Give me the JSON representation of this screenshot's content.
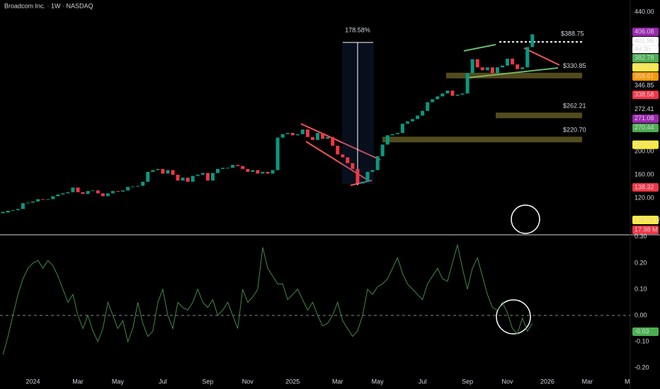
{
  "chart_data": [
    {
      "type": "candlestick",
      "title": "Broadcom Inc. · 1W · NASDAQ",
      "values": [
        95,
        98,
        99,
        101,
        111,
        112,
        114,
        118,
        117,
        118,
        123,
        126,
        128,
        130,
        138,
        130,
        127,
        132,
        133,
        128,
        123,
        128,
        132,
        131,
        133,
        139,
        140,
        141,
        148,
        165,
        168,
        170,
        162,
        168,
        160,
        150,
        155,
        148,
        158,
        160,
        163,
        150,
        163,
        170,
        172,
        172,
        177,
        175,
        170,
        165,
        168,
        162,
        165,
        162,
        168,
        224,
        230,
        232,
        228,
        230,
        238,
        225,
        220,
        232,
        222,
        225,
        210,
        195,
        190,
        180,
        170,
        145,
        148,
        165,
        168,
        192,
        212,
        228,
        230,
        232,
        248,
        252,
        256,
        262,
        270,
        285,
        290,
        295,
        300,
        305,
        296,
        298,
        300,
        335,
        359,
        345,
        340,
        345,
        335,
        345,
        348,
        360,
        350,
        342,
        345,
        380,
        401.96
      ],
      "up_color": "#089981",
      "down_color": "#f23645",
      "xlim": [
        -0.6,
        125.6
      ],
      "ylim": [
        59,
        461
      ],
      "yticks": [
        {
          "value": 440,
          "label": "440.00"
        },
        {
          "value": 200,
          "label": "200.00"
        },
        {
          "value": 160,
          "label": "160.00"
        },
        {
          "value": 120,
          "label": "120.00"
        }
      ],
      "price_labels": [
        {
          "value": 406.08,
          "label": "406.08",
          "color": "#9c27b0"
        },
        {
          "value": 401.96,
          "label": "401.96",
          "color": "#ffffff"
        },
        {
          "value": 382.78,
          "label": "382.78",
          "color": "#4caf50"
        },
        {
          "value": 372.54,
          "label": "372.54",
          "color": "#ffeb3b"
        },
        {
          "value": 358.61,
          "label": "358.61",
          "color": "#ff9800"
        },
        {
          "value": 346.85,
          "label": "346.85"
        },
        {
          "value": 338.58,
          "label": "338.58",
          "color": "#f23645"
        },
        {
          "value": 272.41,
          "label": "272.41"
        },
        {
          "value": 271.08,
          "label": "271.08",
          "color": "#9c27b0"
        },
        {
          "value": 270.44,
          "label": "270.44",
          "color": "#4caf50"
        },
        {
          "value": 211.7,
          "label": "211.70",
          "color": "#ffeb3b"
        },
        {
          "value": 138.32,
          "label": "138.32",
          "color": "#f23645"
        }
      ],
      "countdown": "4d 3h",
      "volume_labels": [
        {
          "value": 106040000,
          "label": "106.04 M",
          "color": "#ffeb3b"
        },
        {
          "value": 17980000,
          "label": "17.98 M",
          "color": "#f23645"
        }
      ],
      "levels": [
        {
          "value": 388.75,
          "label": "$388.75"
        },
        {
          "value": 330.85,
          "label": "$330.85"
        },
        {
          "value": 262.21,
          "label": "$262.21"
        },
        {
          "value": 220.7,
          "label": "$220.70"
        }
      ],
      "annotation": "178.58%"
    },
    {
      "type": "line",
      "values": [
        -0.15,
        -0.08,
        0.0,
        0.08,
        0.14,
        0.18,
        0.2,
        0.21,
        0.18,
        0.21,
        0.19,
        0.15,
        0.1,
        0.05,
        0.08,
        0.0,
        -0.05,
        0.0,
        -0.06,
        -0.1,
        -0.05,
        0.05,
        0.0,
        -0.05,
        -0.02,
        -0.1,
        -0.05,
        0.05,
        -0.03,
        -0.08,
        -0.06,
        0.05,
        0.1,
        0.0,
        -0.05,
        0.05,
        0.03,
        0.02,
        0.05,
        0.1,
        0.05,
        0.03,
        0.06,
        0.0,
        0.02,
        0.05,
        0.0,
        -0.05,
        0.1,
        0.05,
        0.07,
        0.1,
        0.26,
        0.18,
        0.15,
        0.12,
        0.12,
        0.06,
        0.08,
        0.1,
        0.06,
        0.02,
        0.05,
        0.0,
        -0.04,
        -0.03,
        0.0,
        0.05,
        -0.02,
        -0.05,
        -0.08,
        -0.06,
        0.0,
        0.1,
        0.08,
        0.11,
        0.12,
        0.14,
        0.18,
        0.22,
        0.16,
        0.12,
        0.1,
        0.08,
        0.06,
        0.12,
        0.15,
        0.18,
        0.14,
        0.13,
        0.2,
        0.27,
        0.18,
        0.1,
        0.18,
        0.22,
        0.15,
        0.08,
        0.03,
        0.02,
        0.05,
        0.01,
        -0.05,
        -0.07,
        -0.01,
        -0.06,
        -0.03
      ],
      "color": "#3f8a44",
      "xlim": [
        -0.6,
        125.6
      ],
      "ylim": [
        -0.254,
        0.305
      ],
      "yticks": [
        {
          "value": 0.3,
          "label": "0.30"
        },
        {
          "value": 0.2,
          "label": "0.20"
        },
        {
          "value": 0.1,
          "label": "0.10"
        },
        {
          "value": 0,
          "label": "0.00"
        },
        {
          "value": -0.1,
          "label": "-0.10"
        },
        {
          "value": -0.2,
          "label": "-0.20"
        }
      ],
      "current_label": {
        "value": -0.03,
        "label": "-0.03",
        "color": "#4caf50"
      },
      "xticks": [
        {
          "value": 6,
          "label": "2024"
        },
        {
          "value": 15,
          "label": "Mar"
        },
        {
          "value": 23,
          "label": "May"
        },
        {
          "value": 32,
          "label": "Jul"
        },
        {
          "value": 41,
          "label": "Sep"
        },
        {
          "value": 49,
          "label": "Nov"
        },
        {
          "value": 58,
          "label": "2025"
        },
        {
          "value": 67,
          "label": "Mar"
        },
        {
          "value": 75,
          "label": "May"
        },
        {
          "value": 84,
          "label": "Jul"
        },
        {
          "value": 93,
          "label": "Sep"
        },
        {
          "value": 101,
          "label": "Nov"
        },
        {
          "value": 109,
          "label": "2026"
        },
        {
          "value": 117,
          "label": "Mar"
        },
        {
          "value": 125,
          "label": "M"
        }
      ]
    }
  ]
}
